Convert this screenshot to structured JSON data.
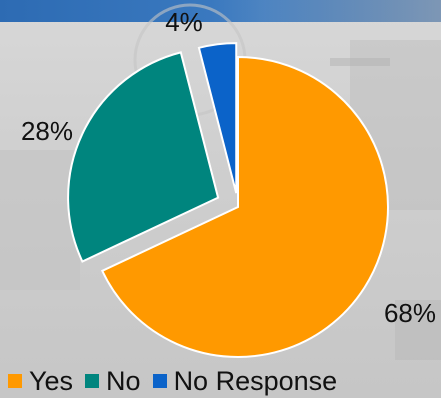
{
  "chart_data": {
    "type": "pie",
    "title": "",
    "slices": [
      {
        "label": "Yes",
        "value": 68,
        "display": "68%",
        "color": "#ff9900"
      },
      {
        "label": "No",
        "value": 28,
        "display": "28%",
        "color": "#00857e"
      },
      {
        "label": "No Response",
        "value": 4,
        "display": "4%",
        "color": "#0b63c9"
      }
    ],
    "legend_position": "bottom",
    "exploded": true
  },
  "legend": {
    "items": [
      {
        "label": "Yes",
        "color": "#ff9900"
      },
      {
        "label": "No",
        "color": "#00857e"
      },
      {
        "label": "No Response",
        "color": "#0b63c9"
      }
    ]
  }
}
